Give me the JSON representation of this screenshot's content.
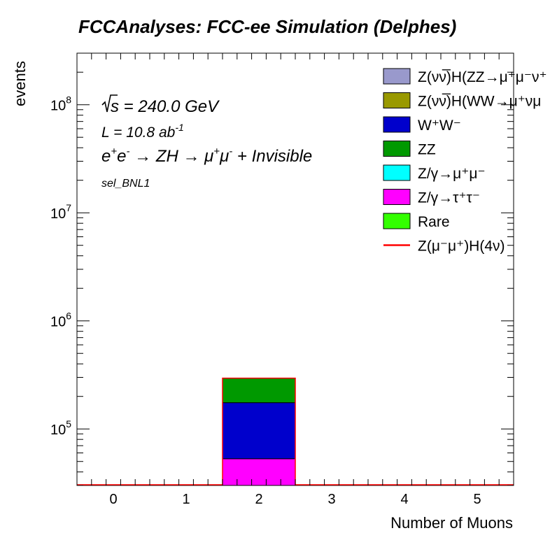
{
  "chart_data": {
    "type": "bar",
    "stacked": true,
    "title": "FCCAnalyses: FCC-ee Simulation (Delphes)",
    "xlabel": "Number of Muons",
    "ylabel": "events",
    "xlim": [
      -0.5,
      5.5
    ],
    "ylim": [
      30000,
      300000000
    ],
    "yscale": "log",
    "x_ticks": [
      0,
      1,
      2,
      3,
      4,
      5
    ],
    "y_ticks": [
      {
        "value": 100000,
        "base": "10",
        "exp": "5"
      },
      {
        "value": 1000000,
        "base": "10",
        "exp": "6"
      },
      {
        "value": 10000000,
        "base": "10",
        "exp": "7"
      },
      {
        "value": 100000000,
        "base": "10",
        "exp": "8"
      }
    ],
    "annotations": {
      "sqrt_s": "s",
      "energy": " = 240.0 GeV",
      "lumi_prefix": "L = 10.8 ab",
      "lumi_exp": "-1",
      "process_part1": "e",
      "process_part2": "e",
      "process_part3": " → ZH → μ",
      "process_part4": "μ",
      "process_part5": " + Invisible",
      "selection": "sel_BNL1"
    },
    "series": [
      {
        "name": "Z/γ→τ⁺τ⁻",
        "color": "#ff00ff",
        "bins": [
          {
            "x": 2,
            "value": 53000
          }
        ]
      },
      {
        "name": "W⁺W⁻",
        "color": "#0000cc",
        "bins": [
          {
            "x": 2,
            "value": 122000
          }
        ]
      },
      {
        "name": "ZZ",
        "color": "#009900",
        "bins": [
          {
            "x": 2,
            "value": 120000
          }
        ]
      }
    ],
    "signal": {
      "name": "Z(μ⁻μ⁺)H(4ν)",
      "color": "#ff0000",
      "value": 0
    },
    "legend": {
      "position": "top-right",
      "entries": [
        {
          "label": "Z(νν̅)H(ZZ→μ⁺μ⁻ν⁺",
          "color": "#9999cc",
          "kind": "box"
        },
        {
          "label": "Z(νν̅)H(WW→μ⁺νμ",
          "color": "#999900",
          "kind": "box"
        },
        {
          "label": "W⁺W⁻",
          "color": "#0000cc",
          "kind": "box"
        },
        {
          "label": "ZZ",
          "color": "#009900",
          "kind": "box"
        },
        {
          "label": "Z/γ→μ⁺μ⁻",
          "color": "#00ffff",
          "kind": "box"
        },
        {
          "label": "Z/γ→τ⁺τ⁻",
          "color": "#ff00ff",
          "kind": "box"
        },
        {
          "label": "Rare",
          "color": "#33ff00",
          "kind": "box"
        },
        {
          "label": "Z(μ⁻μ⁺)H(4ν)",
          "color": "#ff0000",
          "kind": "line"
        }
      ]
    }
  }
}
